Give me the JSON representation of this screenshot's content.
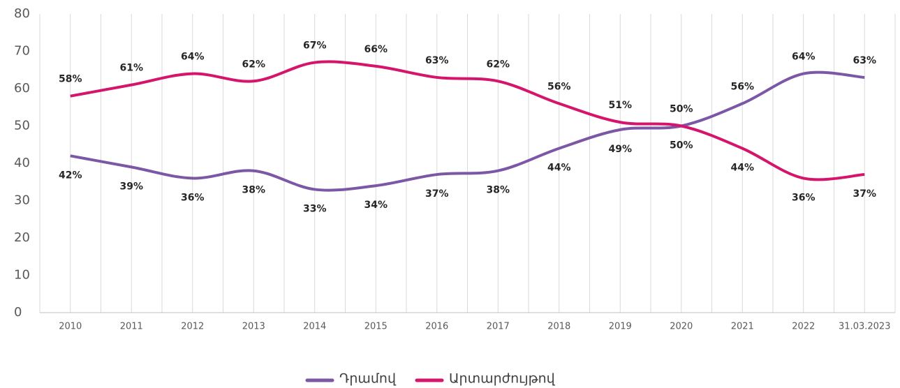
{
  "chart_data": {
    "type": "line",
    "categories": [
      "2010",
      "2011",
      "2012",
      "2013",
      "2014",
      "2015",
      "2016",
      "2017",
      "2018",
      "2019",
      "2020",
      "2021",
      "2022",
      "31.03.2023"
    ],
    "series": [
      {
        "name": "Դրամով",
        "color": "#7b57a5",
        "values": [
          42,
          39,
          36,
          38,
          33,
          34,
          37,
          38,
          44,
          49,
          50,
          56,
          64,
          63
        ],
        "value_labels": [
          "42%",
          "39%",
          "36%",
          "38%",
          "33%",
          "34%",
          "37%",
          "38%",
          "44%",
          "49%",
          "50%",
          "56%",
          "64%",
          "63%"
        ]
      },
      {
        "name": "Արտարժույթով",
        "color": "#d5146b",
        "values": [
          58,
          61,
          64,
          62,
          67,
          66,
          63,
          62,
          56,
          51,
          50,
          44,
          36,
          37
        ],
        "value_labels": [
          "58%",
          "61%",
          "64%",
          "62%",
          "67%",
          "66%",
          "63%",
          "62%",
          "56%",
          "51%",
          "50%",
          "44%",
          "36%",
          "37%"
        ]
      }
    ],
    "ylim": [
      0,
      80
    ],
    "yticks": [
      0,
      10,
      20,
      30,
      40,
      50,
      60,
      70,
      80
    ],
    "grid": true,
    "legend": "bottom"
  }
}
